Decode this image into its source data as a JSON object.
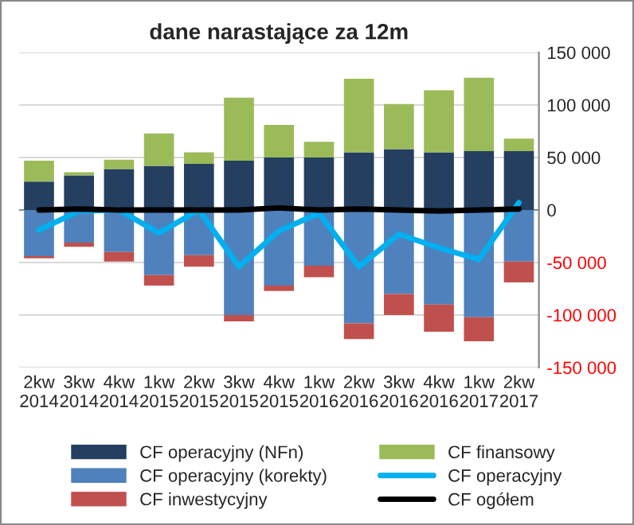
{
  "chart_data": {
    "type": "bar",
    "title": "dane narastające za 12m",
    "stacked": true,
    "categories": [
      "2kw\n2014",
      "3kw\n2014",
      "4kw\n2014",
      "1kw\n2015",
      "2kw\n2015",
      "3kw\n2015",
      "4kw\n2015",
      "1kw\n2016",
      "2kw\n2016",
      "3kw\n2016",
      "4kw\n2016",
      "1kw\n2017",
      "2kw\n2017"
    ],
    "series": [
      {
        "name": "CF operacyjny (NFn)",
        "color": "#243f60",
        "values": [
          27000,
          33000,
          39000,
          42000,
          44000,
          47000,
          50000,
          50000,
          55000,
          58000,
          55000,
          56000,
          56000
        ]
      },
      {
        "name": "CF operacyjny (korekty)",
        "color": "#4f81bd",
        "values": [
          -44000,
          -31000,
          -40000,
          -62000,
          -43000,
          -100000,
          -72000,
          -53000,
          -108000,
          -80000,
          -90000,
          -102000,
          -49000
        ]
      },
      {
        "name": "CF inwestycyjny",
        "color": "#c0504d",
        "values": [
          -2000,
          -4000,
          -9000,
          -10000,
          -11000,
          -6000,
          -5000,
          -11000,
          -15000,
          -20000,
          -26000,
          -23000,
          -20000
        ]
      },
      {
        "name": "CF finansowy",
        "color": "#9bbb59",
        "values": [
          20000,
          3000,
          9000,
          31000,
          11000,
          60000,
          31000,
          15000,
          70000,
          43000,
          59000,
          70000,
          12000
        ]
      },
      {
        "name": "CF operacyjny",
        "type": "line",
        "color": "#00b0f0",
        "values": [
          -19000,
          -1000,
          0,
          -22000,
          0,
          -54000,
          -20000,
          -3000,
          -54000,
          -23000,
          -36000,
          -47000,
          7000
        ]
      },
      {
        "name": "CF ogółem",
        "type": "line",
        "color": "#000000",
        "values": [
          0,
          1000,
          0,
          0,
          0,
          0,
          2000,
          0,
          1000,
          0,
          -1000,
          0,
          1000
        ]
      }
    ],
    "ylim": [
      -150000,
      150000
    ],
    "yticks": [
      {
        "value": -150000,
        "label": "-150 000"
      },
      {
        "value": -100000,
        "label": "-100 000"
      },
      {
        "value": -50000,
        "label": "-50 000"
      },
      {
        "value": 0,
        "label": "0"
      },
      {
        "value": 50000,
        "label": "50 000"
      },
      {
        "value": 100000,
        "label": "100 000"
      },
      {
        "value": 150000,
        "label": "150 000"
      }
    ],
    "grid": "y",
    "legend": "bottom",
    "line_style": "solid",
    "marker": "none"
  }
}
